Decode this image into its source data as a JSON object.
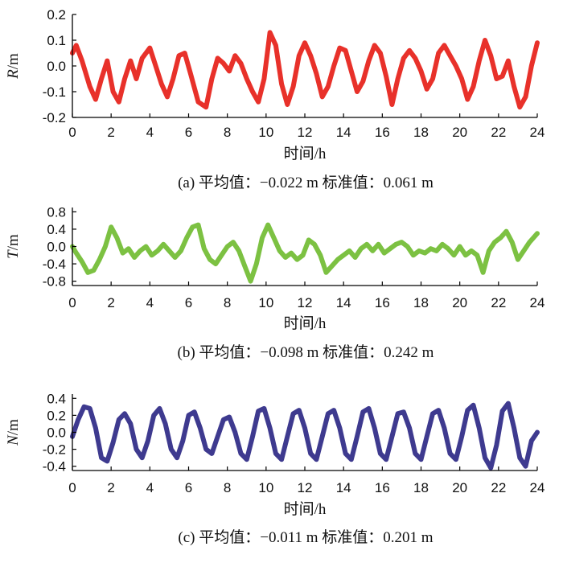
{
  "chart_data": [
    {
      "type": "line",
      "panel": "a",
      "ylabel_var": "R",
      "ylabel_unit": "/m",
      "xlabel": "时间/h",
      "caption": "(a) 平均值：−0.022 m   标准值：0.061 m",
      "xlim": [
        0,
        24
      ],
      "ylim": [
        -0.2,
        0.2
      ],
      "xticks": [
        "0",
        "2",
        "4",
        "6",
        "8",
        "10",
        "12",
        "14",
        "16",
        "18",
        "20",
        "22",
        "24"
      ],
      "yticks": [
        "0.2",
        "0.1",
        "0.0",
        "-0.1",
        "-0.2"
      ],
      "color": "#e8312a",
      "series": [
        {
          "x": [
            0,
            0.2,
            0.5,
            0.9,
            1.2,
            1.5,
            1.8,
            2.1,
            2.4,
            2.7,
            3.0,
            3.3,
            3.6,
            4.0,
            4.3,
            4.6,
            4.9,
            5.2,
            5.5,
            5.8,
            6.1,
            6.5,
            6.9,
            7.2,
            7.5,
            7.8,
            8.1,
            8.4,
            8.7,
            9.0,
            9.3,
            9.6,
            9.9,
            10.2,
            10.5,
            10.8,
            11.1,
            11.4,
            11.7,
            12.0,
            12.3,
            12.6,
            12.9,
            13.2,
            13.5,
            13.8,
            14.1,
            14.4,
            14.7,
            15.0,
            15.3,
            15.6,
            15.9,
            16.2,
            16.5,
            16.8,
            17.1,
            17.4,
            17.7,
            18.0,
            18.3,
            18.6,
            18.9,
            19.2,
            19.5,
            19.8,
            20.1,
            20.4,
            20.7,
            21.0,
            21.3,
            21.6,
            21.9,
            22.2,
            22.5,
            22.8,
            23.1,
            23.4,
            23.7,
            24.0
          ],
          "y": [
            0.05,
            0.08,
            0.02,
            -0.08,
            -0.13,
            -0.05,
            0.02,
            -0.1,
            -0.14,
            -0.05,
            0.02,
            -0.05,
            0.03,
            0.07,
            0.0,
            -0.07,
            -0.12,
            -0.05,
            0.04,
            0.05,
            -0.03,
            -0.14,
            -0.16,
            -0.05,
            0.03,
            0.01,
            -0.02,
            0.04,
            0.01,
            -0.05,
            -0.1,
            -0.14,
            -0.05,
            0.13,
            0.08,
            -0.07,
            -0.15,
            -0.08,
            0.04,
            0.09,
            0.04,
            -0.03,
            -0.12,
            -0.08,
            0.0,
            0.07,
            0.06,
            -0.02,
            -0.1,
            -0.06,
            0.02,
            0.08,
            0.05,
            -0.04,
            -0.15,
            -0.05,
            0.03,
            0.06,
            0.03,
            -0.02,
            -0.09,
            -0.05,
            0.05,
            0.08,
            0.04,
            0.0,
            -0.05,
            -0.13,
            -0.08,
            0.02,
            0.1,
            0.04,
            -0.05,
            -0.04,
            0.02,
            -0.08,
            -0.16,
            -0.12,
            0.0,
            0.09
          ]
        }
      ]
    },
    {
      "type": "line",
      "panel": "b",
      "ylabel_var": "T",
      "ylabel_unit": "/m",
      "xlabel": "时间/h",
      "caption": "(b) 平均值：−0.098 m   标准值：0.242 m",
      "xlim": [
        0,
        24
      ],
      "ylim": [
        -0.9,
        0.9
      ],
      "xticks": [
        "0",
        "2",
        "4",
        "6",
        "8",
        "10",
        "12",
        "14",
        "16",
        "18",
        "20",
        "22",
        "24"
      ],
      "yticks": [
        "0.8",
        "0.4",
        "0.0",
        "-0.4",
        "-0.8"
      ],
      "color": "#7cc142",
      "series": [
        {
          "x": [
            0,
            0.2,
            0.5,
            0.8,
            1.1,
            1.4,
            1.7,
            2.0,
            2.3,
            2.6,
            2.9,
            3.2,
            3.5,
            3.8,
            4.1,
            4.4,
            4.7,
            5.0,
            5.3,
            5.6,
            5.9,
            6.2,
            6.5,
            6.8,
            7.1,
            7.4,
            7.7,
            8.0,
            8.3,
            8.6,
            8.9,
            9.2,
            9.5,
            9.8,
            10.1,
            10.4,
            10.7,
            11.0,
            11.3,
            11.6,
            11.9,
            12.2,
            12.5,
            12.8,
            13.1,
            13.4,
            13.7,
            14.0,
            14.3,
            14.6,
            14.9,
            15.2,
            15.5,
            15.8,
            16.1,
            16.4,
            16.7,
            17.0,
            17.3,
            17.6,
            17.9,
            18.2,
            18.5,
            18.8,
            19.1,
            19.4,
            19.7,
            20.0,
            20.3,
            20.6,
            20.9,
            21.2,
            21.5,
            21.8,
            22.1,
            22.4,
            22.7,
            23.0,
            23.3,
            23.6,
            24.0
          ],
          "y": [
            0.0,
            -0.15,
            -0.35,
            -0.6,
            -0.55,
            -0.3,
            0.0,
            0.45,
            0.2,
            -0.15,
            -0.05,
            -0.25,
            -0.1,
            0.0,
            -0.2,
            -0.1,
            0.05,
            -0.1,
            -0.25,
            -0.1,
            0.2,
            0.45,
            0.5,
            -0.05,
            -0.3,
            -0.4,
            -0.2,
            0.0,
            0.1,
            -0.1,
            -0.45,
            -0.8,
            -0.4,
            0.2,
            0.5,
            0.2,
            -0.1,
            -0.25,
            -0.15,
            -0.3,
            -0.2,
            0.15,
            0.05,
            -0.2,
            -0.6,
            -0.45,
            -0.3,
            -0.2,
            -0.1,
            -0.25,
            -0.05,
            0.05,
            -0.1,
            0.05,
            -0.15,
            -0.05,
            0.05,
            0.1,
            0.0,
            -0.2,
            -0.1,
            -0.15,
            -0.05,
            -0.1,
            0.05,
            -0.05,
            -0.2,
            0.0,
            -0.2,
            -0.1,
            -0.2,
            -0.6,
            -0.1,
            0.1,
            0.2,
            0.35,
            0.1,
            -0.3,
            -0.1,
            0.1,
            0.3
          ]
        }
      ]
    },
    {
      "type": "line",
      "panel": "c",
      "ylabel_var": "N",
      "ylabel_unit": "/m",
      "xlabel": "时间/h",
      "caption": "(c) 平均值：−0.011 m   标准值：0.201 m",
      "xlim": [
        0,
        24
      ],
      "ylim": [
        -0.45,
        0.45
      ],
      "xticks": [
        "0",
        "2",
        "4",
        "6",
        "8",
        "10",
        "12",
        "14",
        "16",
        "18",
        "20",
        "22",
        "24"
      ],
      "yticks": [
        "0.4",
        "0.2",
        "0.0",
        "-0.2",
        "-0.4"
      ],
      "color": "#3e3a8f",
      "series": [
        {
          "x": [
            0,
            0.3,
            0.6,
            0.9,
            1.2,
            1.5,
            1.8,
            2.1,
            2.4,
            2.7,
            3.0,
            3.3,
            3.6,
            3.9,
            4.2,
            4.5,
            4.8,
            5.1,
            5.4,
            5.7,
            6.0,
            6.3,
            6.6,
            6.9,
            7.2,
            7.5,
            7.8,
            8.1,
            8.4,
            8.7,
            9.0,
            9.3,
            9.6,
            9.9,
            10.2,
            10.5,
            10.8,
            11.1,
            11.4,
            11.7,
            12.0,
            12.3,
            12.6,
            12.9,
            13.2,
            13.5,
            13.8,
            14.1,
            14.4,
            14.7,
            15.0,
            15.3,
            15.6,
            15.9,
            16.2,
            16.5,
            16.8,
            17.1,
            17.4,
            17.7,
            18.0,
            18.3,
            18.6,
            18.9,
            19.2,
            19.5,
            19.8,
            20.1,
            20.4,
            20.7,
            21.0,
            21.3,
            21.6,
            21.9,
            22.2,
            22.5,
            22.8,
            23.1,
            23.4,
            23.7,
            24.0
          ],
          "y": [
            -0.05,
            0.15,
            0.3,
            0.28,
            0.05,
            -0.3,
            -0.34,
            -0.12,
            0.15,
            0.22,
            0.1,
            -0.2,
            -0.3,
            -0.1,
            0.2,
            0.28,
            0.1,
            -0.2,
            -0.3,
            -0.1,
            0.2,
            0.24,
            0.05,
            -0.2,
            -0.25,
            -0.05,
            0.15,
            0.18,
            0.0,
            -0.25,
            -0.32,
            -0.05,
            0.25,
            0.28,
            0.05,
            -0.25,
            -0.32,
            -0.05,
            0.22,
            0.26,
            0.05,
            -0.25,
            -0.32,
            -0.05,
            0.22,
            0.26,
            0.05,
            -0.25,
            -0.32,
            -0.05,
            0.24,
            0.28,
            0.05,
            -0.25,
            -0.32,
            -0.05,
            0.22,
            0.24,
            0.05,
            -0.25,
            -0.32,
            -0.05,
            0.22,
            0.26,
            0.05,
            -0.25,
            -0.32,
            -0.05,
            0.26,
            0.32,
            0.05,
            -0.3,
            -0.42,
            -0.15,
            0.25,
            0.34,
            0.05,
            -0.3,
            -0.4,
            -0.1,
            0.0
          ]
        }
      ]
    }
  ]
}
